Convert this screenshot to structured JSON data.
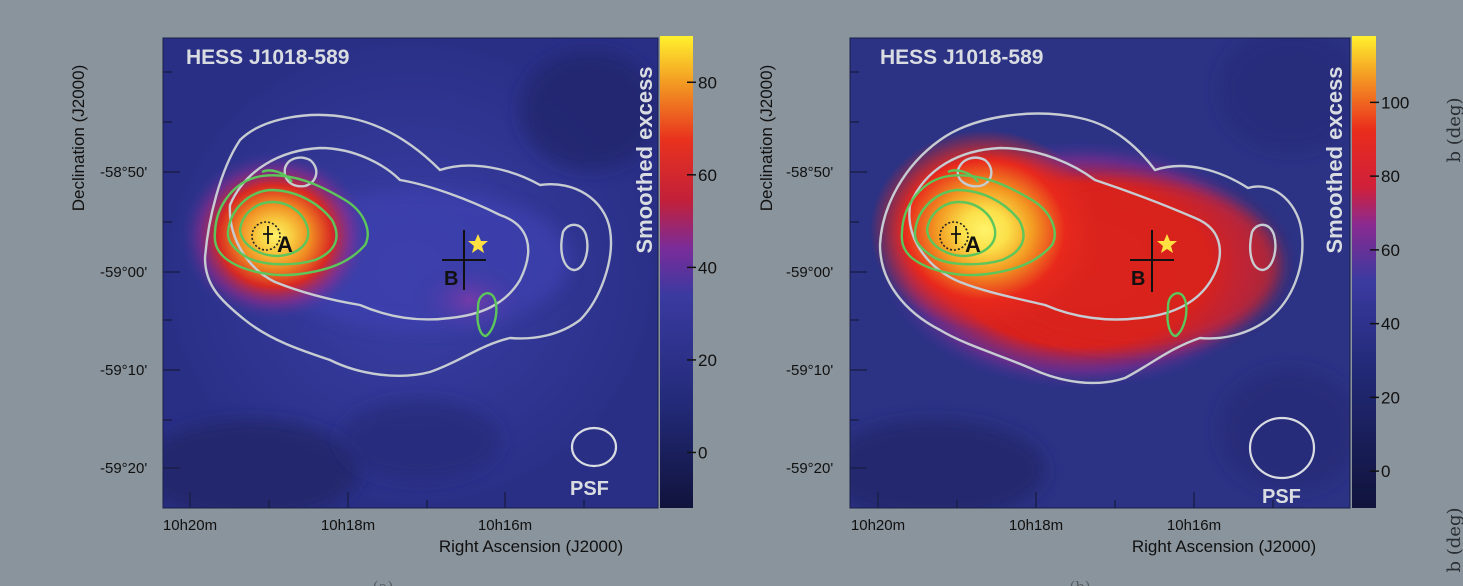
{
  "figure": {
    "side_label": "b (deg)",
    "panels": [
      {
        "id": "a",
        "title": "HESS J1018-589",
        "colorbar_label": "Smoothed excess",
        "colorbar_ticks": [
          "80",
          "60",
          "40",
          "20",
          "0"
        ],
        "colorbar_tick_values": [
          80,
          60,
          40,
          20,
          0
        ],
        "colorbar_range": [
          -12,
          90
        ],
        "x_ticks": [
          "10h20m",
          "10h18m",
          "10h16m"
        ],
        "y_ticks": [
          "-58°50'",
          "-59°00'",
          "-59°10'",
          "-59°20'"
        ],
        "xlabel": "Right Ascension (J2000)",
        "ylabel": "Declination (J2000)",
        "marker_a": "A",
        "marker_b": "B",
        "psf_label": "PSF",
        "caption": "(a)"
      },
      {
        "id": "b",
        "title": "HESS J1018-589",
        "colorbar_label": "Smoothed excess",
        "colorbar_ticks": [
          "100",
          "80",
          "60",
          "40",
          "20",
          "0"
        ],
        "colorbar_tick_values": [
          100,
          80,
          60,
          40,
          20,
          0
        ],
        "colorbar_range": [
          -10,
          118
        ],
        "x_ticks": [
          "10h20m",
          "10h18m",
          "10h16m"
        ],
        "y_ticks": [
          "-58°50'",
          "-59°00'",
          "-59°10'",
          "-59°20'"
        ],
        "xlabel": "Right Ascension (J2000)",
        "ylabel": "Declination (J2000)",
        "marker_a": "A",
        "marker_b": "B",
        "psf_label": "PSF",
        "caption": "(b)"
      }
    ]
  },
  "colors": {
    "background": "#8a949c",
    "gray_contour": "#c6ccd2",
    "green_contour": "#5cc65a",
    "star": "#ffe040",
    "label_text": "#d9dde2"
  }
}
